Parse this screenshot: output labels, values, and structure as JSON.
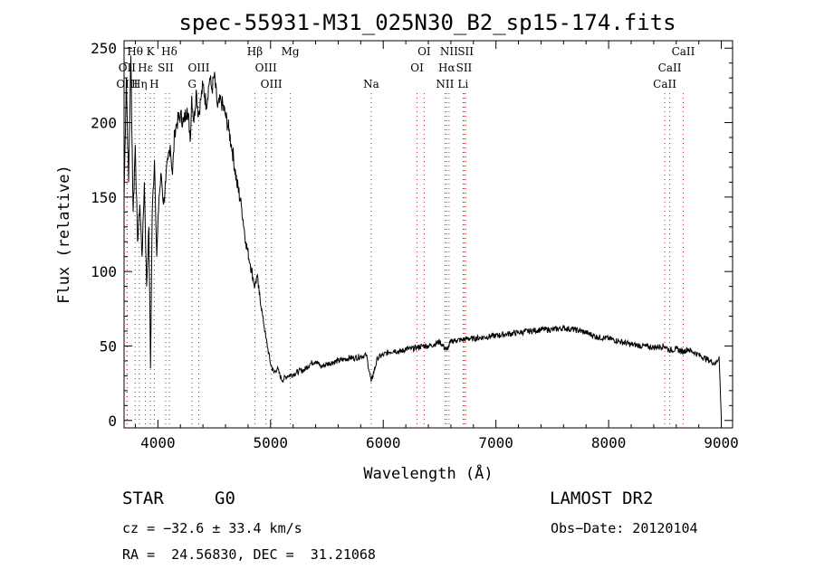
{
  "chart_data": {
    "type": "line",
    "title": "spec-55931-M31_025N30_B2_sp15-174.fits",
    "xlabel": "Wavelength (Å)",
    "ylabel": "Flux (relative)",
    "xlim": [
      3700,
      9100
    ],
    "ylim": [
      -5,
      255
    ],
    "xticks": [
      4000,
      5000,
      6000,
      7000,
      8000,
      9000
    ],
    "yticks": [
      0,
      50,
      100,
      150,
      200,
      250
    ],
    "grid": false,
    "series": [
      {
        "x": [
          3700,
          3720,
          3740,
          3760,
          3780,
          3800,
          3820,
          3840,
          3860,
          3880,
          3900,
          3920,
          3935,
          3950,
          3970,
          3990,
          4010,
          4030,
          4050,
          4070,
          4090,
          4110,
          4130,
          4150,
          4170,
          4200,
          4230,
          4260,
          4290,
          4300,
          4320,
          4340,
          4360,
          4380,
          4400,
          4430,
          4460,
          4480,
          4500,
          4530,
          4560,
          4600,
          4630,
          4660,
          4700,
          4740,
          4780,
          4820,
          4861,
          4880,
          4900,
          4930,
          4960,
          5000,
          5030,
          5060,
          5100,
          5150,
          5200,
          5250,
          5300,
          5350,
          5400,
          5450,
          5500,
          5550,
          5600,
          5650,
          5700,
          5750,
          5800,
          5850,
          5893,
          5950,
          6000,
          6050,
          6100,
          6150,
          6200,
          6250,
          6300,
          6350,
          6400,
          6450,
          6500,
          6563,
          6600,
          6650,
          6700,
          6750,
          6800,
          6900,
          7000,
          7100,
          7200,
          7300,
          7400,
          7500,
          7600,
          7700,
          7800,
          7900,
          8000,
          8100,
          8200,
          8300,
          8400,
          8498,
          8542,
          8600,
          8662,
          8700,
          8800,
          8900,
          8950,
          8980,
          9000
        ],
        "values": [
          150,
          230,
          160,
          245,
          140,
          185,
          120,
          145,
          110,
          160,
          90,
          130,
          35,
          140,
          175,
          110,
          150,
          165,
          145,
          160,
          175,
          185,
          165,
          195,
          200,
          205,
          200,
          210,
          190,
          218,
          200,
          222,
          205,
          215,
          225,
          212,
          230,
          222,
          232,
          210,
          215,
          205,
          195,
          182,
          160,
          145,
          120,
          105,
          90,
          97,
          85,
          70,
          55,
          38,
          32,
          35,
          27,
          30,
          31,
          33,
          34,
          38,
          40,
          36,
          38,
          39,
          40,
          41,
          42,
          42,
          43,
          44,
          26,
          42,
          44,
          46,
          47,
          46,
          48,
          48,
          49,
          50,
          50,
          51,
          53,
          47,
          53,
          54,
          54,
          55,
          55,
          56,
          57,
          58,
          59,
          60,
          61,
          61,
          62,
          61,
          59,
          56,
          55,
          53,
          51,
          50,
          49,
          50,
          47,
          48,
          46,
          48,
          44,
          40,
          38,
          43,
          0
        ]
      }
    ],
    "spectral_lines": [
      {
        "label": "Hθ",
        "x": 3798,
        "row": 0,
        "color": "#555555"
      },
      {
        "label": "Hη",
        "x": 3835,
        "row": 2,
        "color": "#555555"
      },
      {
        "label": "Hε",
        "x": 3889,
        "row": 1,
        "color": "#555555"
      },
      {
        "label": "K",
        "x": 3934,
        "row": 0,
        "color": "#555555"
      },
      {
        "label": "H",
        "x": 3968,
        "row": 2,
        "color": "#555555"
      },
      {
        "label": "SII",
        "x": 4069,
        "row": 1,
        "color": "#555555"
      },
      {
        "label": "Hδ",
        "x": 4102,
        "row": 0,
        "color": "#555555"
      },
      {
        "label": "OII",
        "x": 3727,
        "row": 1,
        "color": "#cc2222"
      },
      {
        "label": "OIII",
        "x": 3727,
        "row": 2,
        "color": "#cc2222"
      },
      {
        "label": "G",
        "x": 4304,
        "row": 2,
        "color": "#555555"
      },
      {
        "label": "OIII",
        "x": 4363,
        "row": 1,
        "color": "#cc2222"
      },
      {
        "label": "Hβ",
        "x": 4861,
        "row": 0,
        "color": "#555555"
      },
      {
        "label": "OIII",
        "x": 4959,
        "row": 1,
        "color": "#cc2222"
      },
      {
        "label": "OIII",
        "x": 5007,
        "row": 2,
        "color": "#cc2222"
      },
      {
        "label": "Mg",
        "x": 5175,
        "row": 0,
        "color": "#555555"
      },
      {
        "label": "Na",
        "x": 5893,
        "row": 2,
        "color": "#555555"
      },
      {
        "label": "OI",
        "x": 6300,
        "row": 1,
        "color": "#cc2222"
      },
      {
        "label": "OI",
        "x": 6363,
        "row": 0,
        "color": "#cc2222"
      },
      {
        "label": "NII",
        "x": 6548,
        "row": 2,
        "color": "#cc2222"
      },
      {
        "label": "Hα",
        "x": 6563,
        "row": 1,
        "color": "#cc2222"
      },
      {
        "label": "NII",
        "x": 6584,
        "row": 0,
        "color": "#cc2222"
      },
      {
        "label": "Li",
        "x": 6708,
        "row": 2,
        "color": "#555555"
      },
      {
        "label": "SII",
        "x": 6717,
        "row": 1,
        "color": "#cc2222"
      },
      {
        "label": "SII",
        "x": 6731,
        "row": 0,
        "color": "#cc2222"
      },
      {
        "label": "CaII",
        "x": 8498,
        "row": 2,
        "color": "#cc2222"
      },
      {
        "label": "CaII",
        "x": 8542,
        "row": 1,
        "color": "#cc2222"
      },
      {
        "label": "CaII",
        "x": 8662,
        "row": 0,
        "color": "#cc2222"
      }
    ]
  },
  "info": {
    "class": "STAR",
    "subclass": "G0",
    "survey": "LAMOST DR2",
    "cz": "cz = −32.6 ± 33.4 km/s",
    "obs_date": "Obs−Date: 20120104",
    "coords": "RA =  24.56830, DEC =  31.21068"
  }
}
